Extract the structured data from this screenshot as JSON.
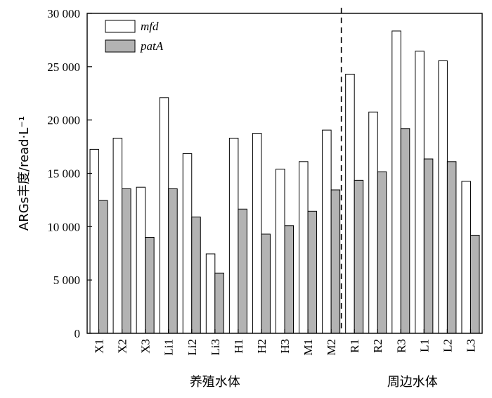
{
  "chart_data": {
    "type": "bar",
    "categories": [
      "X1",
      "X2",
      "X3",
      "Li1",
      "Li2",
      "Li3",
      "H1",
      "H2",
      "H3",
      "M1",
      "M2",
      "R1",
      "R2",
      "R3",
      "L1",
      "L2",
      "L3"
    ],
    "series": [
      {
        "name": "mfd",
        "color": "#ffffff",
        "values": [
          17250,
          18300,
          13700,
          22100,
          16850,
          7450,
          18300,
          18750,
          15400,
          16100,
          19050,
          24300,
          20750,
          28350,
          26450,
          25550,
          14250
        ]
      },
      {
        "name": "patA",
        "color": "#b3b3b3",
        "values": [
          12450,
          13550,
          9000,
          13550,
          10900,
          5650,
          11650,
          9300,
          10100,
          11450,
          13450,
          14350,
          15150,
          19200,
          16350,
          16100,
          9200
        ]
      }
    ],
    "ylabel": "ARGs丰度/read·L⁻¹",
    "ylim": [
      0,
      30000
    ],
    "yticks": [
      0,
      5000,
      10000,
      15000,
      20000,
      25000,
      30000
    ],
    "ytick_labels": [
      "0",
      "5 000",
      "10 000",
      "15 000",
      "20 000",
      "25 000",
      "30 000"
    ],
    "groups": [
      {
        "label": "养殖水体",
        "start": 0,
        "end": 10
      },
      {
        "label": "周边水体",
        "start": 11,
        "end": 16
      }
    ],
    "divider_after_index": 10,
    "legend_position": "top-left",
    "grid": false
  }
}
